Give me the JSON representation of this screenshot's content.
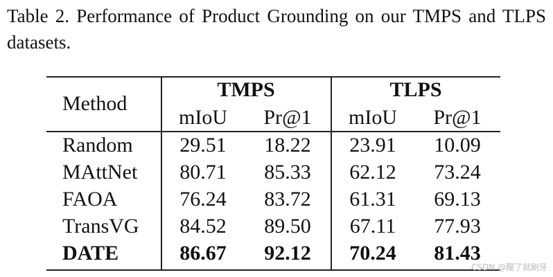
{
  "caption": "Table 2. Performance of Product Grounding on our TMPS and TLPS datasets.",
  "table": {
    "header": {
      "method": "Method",
      "groups": [
        "TMPS",
        "TLPS"
      ],
      "subcolumns": [
        "mIoU",
        "Pr@1",
        "mIoU",
        "Pr@1"
      ]
    },
    "rows": [
      {
        "method": "Random",
        "values": [
          "29.51",
          "18.22",
          "23.91",
          "10.09"
        ]
      },
      {
        "method": "MAttNet",
        "values": [
          "80.71",
          "85.33",
          "62.12",
          "73.24"
        ]
      },
      {
        "method": "FAOA",
        "values": [
          "76.24",
          "83.72",
          "61.31",
          "69.13"
        ]
      },
      {
        "method": "TransVG",
        "values": [
          "84.52",
          "89.50",
          "67.11",
          "77.93"
        ]
      },
      {
        "method": "DATE",
        "values": [
          "86.67",
          "92.12",
          "70.24",
          "81.43"
        ],
        "bold": true
      }
    ]
  },
  "watermark": "CSDN @醒了就刷牙"
}
